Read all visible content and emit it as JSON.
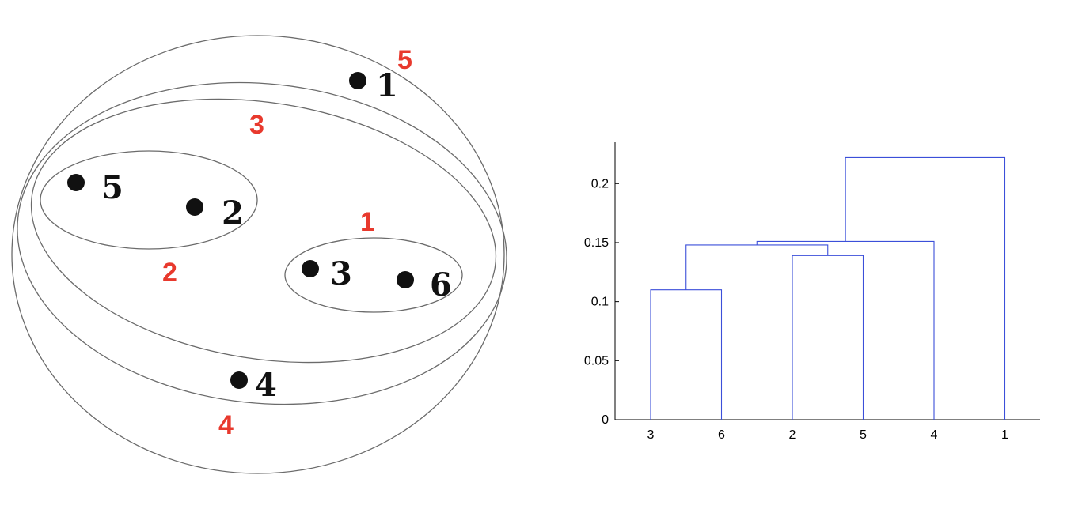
{
  "colors": {
    "cluster_label": "#e8392d",
    "point": "#111111",
    "ring": "#6b6b6b",
    "dendrogram_line": "#3b4fd9",
    "axis": "#000000"
  },
  "nested_clusters": {
    "points": [
      {
        "id": "1",
        "label": "1"
      },
      {
        "id": "2",
        "label": "2"
      },
      {
        "id": "3",
        "label": "3"
      },
      {
        "id": "4",
        "label": "4"
      },
      {
        "id": "5",
        "label": "5"
      },
      {
        "id": "6",
        "label": "6"
      }
    ],
    "clusters": [
      {
        "id": "c1",
        "label": "1",
        "members": [
          "3",
          "6"
        ]
      },
      {
        "id": "c2",
        "label": "2",
        "members": [
          "2",
          "5"
        ]
      },
      {
        "id": "c3",
        "label": "3",
        "members": [
          "2",
          "3",
          "5",
          "6"
        ]
      },
      {
        "id": "c4",
        "label": "4",
        "members": [
          "2",
          "3",
          "4",
          "5",
          "6"
        ]
      },
      {
        "id": "c5",
        "label": "5",
        "members": [
          "1",
          "2",
          "3",
          "4",
          "5",
          "6"
        ]
      }
    ]
  },
  "chart_data": {
    "type": "dendrogram",
    "leaf_order": [
      "3",
      "6",
      "2",
      "5",
      "4",
      "1"
    ],
    "merges": [
      {
        "left": "3",
        "right": "6",
        "height": 0.11
      },
      {
        "left": "2",
        "right": "5",
        "height": 0.139
      },
      {
        "left": "3-6",
        "right": "2-5",
        "height": 0.148
      },
      {
        "left": "3-6-2-5",
        "right": "4",
        "height": 0.151
      },
      {
        "left": "3-6-2-5-4",
        "right": "1",
        "height": 0.222
      }
    ],
    "yticks": [
      "0",
      "0.05",
      "0.1",
      "0.15",
      "0.2"
    ],
    "ylim": [
      0,
      0.235
    ],
    "title": "",
    "xlabel": "",
    "ylabel": "",
    "grid": false
  }
}
